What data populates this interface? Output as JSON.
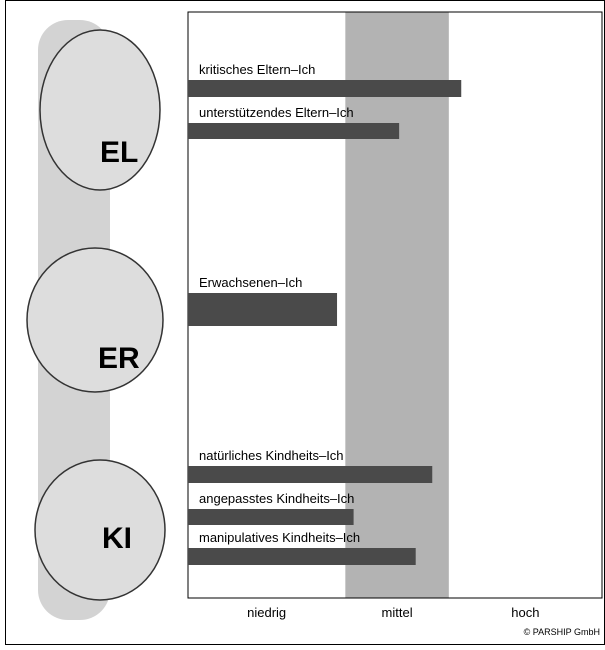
{
  "chart_data": {
    "type": "bar",
    "orientation": "horizontal",
    "categories": [
      "kritisches Eltern–Ich",
      "unterstützendes Eltern–Ich",
      "Erwachsenen–Ich",
      "natürliches Kindheits–Ich",
      "angepasstes Kindheits–Ich",
      "manipulatives Kindheits–Ich"
    ],
    "values": [
      66,
      51,
      36,
      59,
      40,
      55
    ],
    "xlim": [
      0,
      100
    ],
    "color": "#4a4a4a",
    "zones": [
      {
        "label": "niedrig",
        "range": [
          0,
          38
        ]
      },
      {
        "label": "mittel",
        "range": [
          38,
          63
        ],
        "color": "#b3b3b3"
      },
      {
        "label": "hoch",
        "range": [
          63,
          100
        ]
      }
    ]
  },
  "illustration_labels": [
    "EL",
    "ER",
    "KI"
  ],
  "credit": "© PARSHIP GmbH"
}
